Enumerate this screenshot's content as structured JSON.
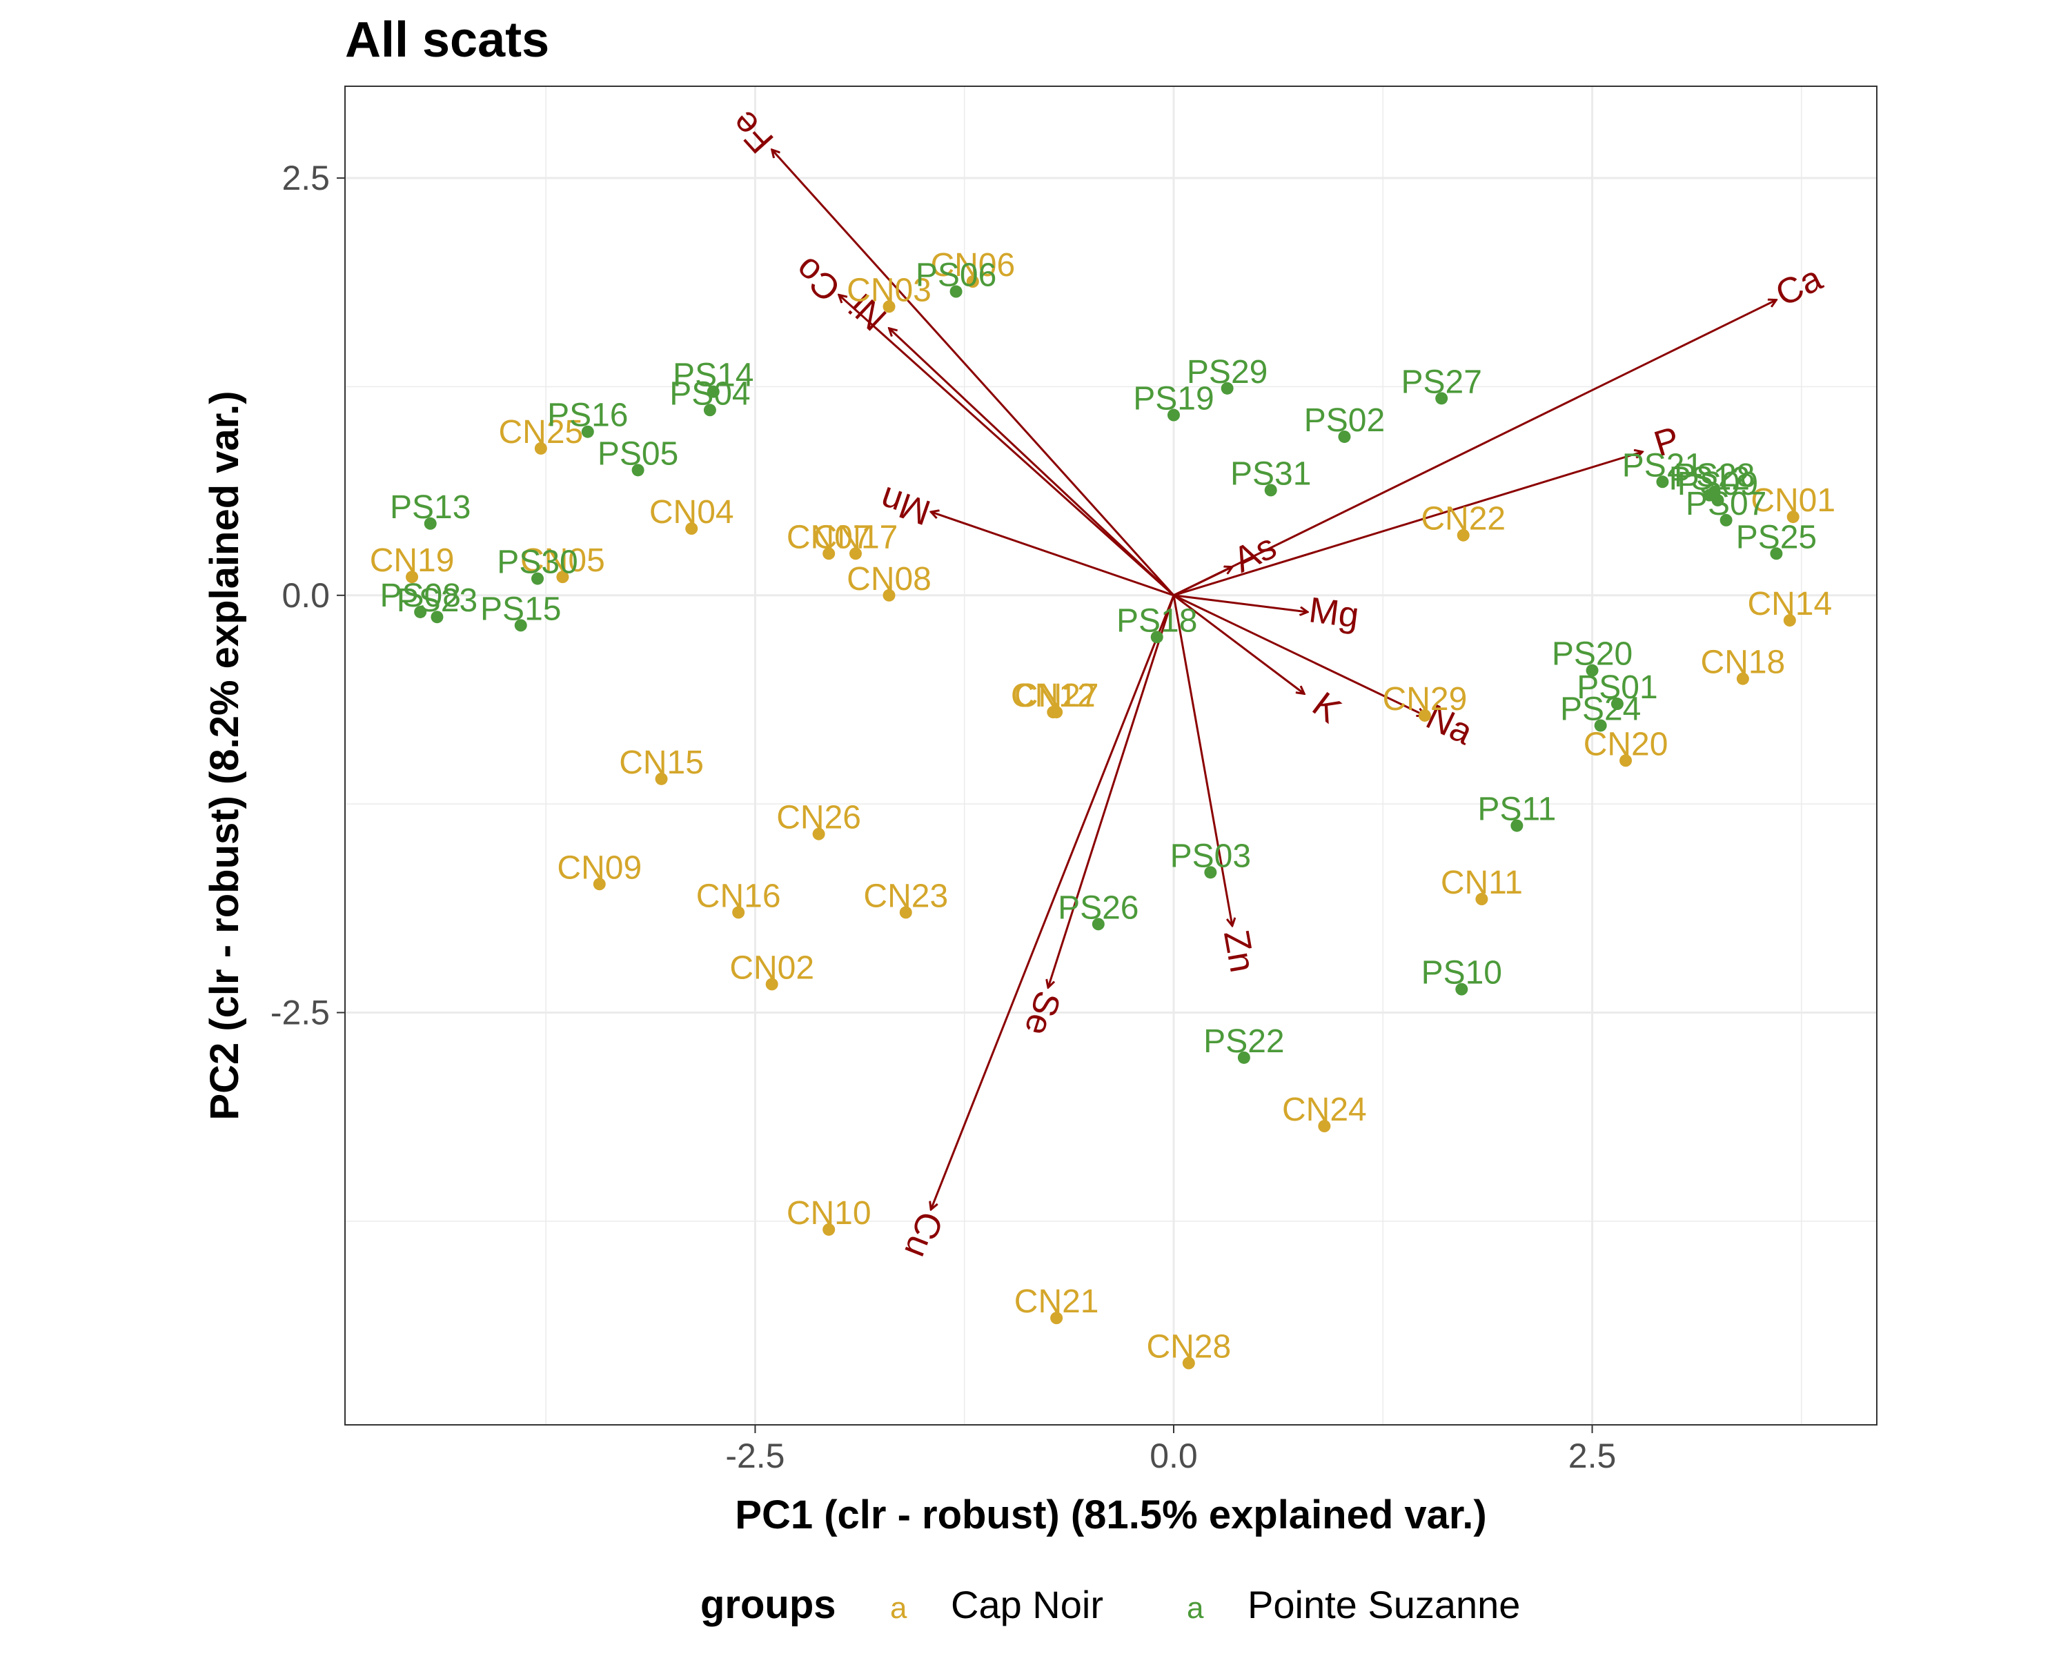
{
  "chart_data": {
    "type": "scatter",
    "title": "All scats",
    "xlabel": "PC1 (clr - robust) (81.5% explained var.)",
    "ylabel": "PC2 (clr - robust) (8.2% explained var.)",
    "xlim": [
      -4.95,
      4.2
    ],
    "ylim": [
      -4.97,
      3.05
    ],
    "x_ticks": [
      -2.5,
      0.0,
      2.5
    ],
    "y_ticks": [
      -2.5,
      0.0,
      2.5
    ],
    "x_tick_labels": [
      "-2.5",
      "0.0",
      "2.5"
    ],
    "y_tick_labels": [
      "-2.5",
      "0.0",
      "2.5"
    ],
    "grid": true,
    "legend": {
      "title": "groups",
      "placement": "bottom",
      "entries": [
        {
          "label": "Cap Noir",
          "color": "#d4a62a"
        },
        {
          "label": "Pointe Suzanne",
          "color": "#4c9a3a"
        }
      ]
    },
    "series": [
      {
        "name": "Cap Noir",
        "color": "#d4a62a",
        "points": [
          {
            "label": "CN01",
            "x": 3.7,
            "y": 0.47
          },
          {
            "label": "CN02",
            "x": -2.4,
            "y": -2.33
          },
          {
            "label": "CN03",
            "x": -1.7,
            "y": 1.73
          },
          {
            "label": "CN04",
            "x": -2.88,
            "y": 0.4
          },
          {
            "label": "CN05",
            "x": -3.65,
            "y": 0.11
          },
          {
            "label": "CN06",
            "x": -1.2,
            "y": 1.88
          },
          {
            "label": "CN07",
            "x": -2.06,
            "y": 0.25
          },
          {
            "label": "CN08",
            "x": -1.7,
            "y": 0.0
          },
          {
            "label": "CN09",
            "x": -3.43,
            "y": -1.73
          },
          {
            "label": "CN10",
            "x": -2.06,
            "y": -3.8
          },
          {
            "label": "CN11",
            "x": 1.84,
            "y": -1.82
          },
          {
            "label": "CN12",
            "x": -0.72,
            "y": -0.7
          },
          {
            "label": "CN14",
            "x": 3.68,
            "y": -0.15
          },
          {
            "label": "CN15",
            "x": -3.06,
            "y": -1.1
          },
          {
            "label": "CN16",
            "x": -2.6,
            "y": -1.9
          },
          {
            "label": "CN17",
            "x": -1.9,
            "y": 0.25
          },
          {
            "label": "CN18",
            "x": 3.4,
            "y": -0.5
          },
          {
            "label": "CN19",
            "x": -4.55,
            "y": 0.11
          },
          {
            "label": "CN20",
            "x": 2.7,
            "y": -0.99
          },
          {
            "label": "CN21",
            "x": -0.7,
            "y": -4.33
          },
          {
            "label": "CN22",
            "x": 1.73,
            "y": 0.36
          },
          {
            "label": "CN23",
            "x": -1.6,
            "y": -1.9
          },
          {
            "label": "CN24",
            "x": 0.9,
            "y": -3.18
          },
          {
            "label": "CN25",
            "x": -3.78,
            "y": 0.88
          },
          {
            "label": "CN26",
            "x": -2.12,
            "y": -1.43
          },
          {
            "label": "CN27",
            "x": -0.7,
            "y": -0.7
          },
          {
            "label": "CN28",
            "x": 0.09,
            "y": -4.6
          },
          {
            "label": "CN29",
            "x": 1.5,
            "y": -0.72
          }
        ]
      },
      {
        "name": "Pointe Suzanne",
        "color": "#4c9a3a",
        "points": [
          {
            "label": "PS01",
            "x": 2.65,
            "y": -0.65
          },
          {
            "label": "PS02",
            "x": 1.02,
            "y": 0.95
          },
          {
            "label": "PS03",
            "x": 0.22,
            "y": -1.66
          },
          {
            "label": "PS04",
            "x": -2.77,
            "y": 1.11
          },
          {
            "label": "PS05",
            "x": -3.2,
            "y": 0.75
          },
          {
            "label": "PS06",
            "x": -1.3,
            "y": 1.82
          },
          {
            "label": "PS07",
            "x": 3.3,
            "y": 0.45
          },
          {
            "label": "PS08",
            "x": -4.5,
            "y": -0.1
          },
          {
            "label": "PS09",
            "x": 3.25,
            "y": 0.57
          },
          {
            "label": "PS11",
            "x": 2.05,
            "y": -1.38
          },
          {
            "label": "PS10",
            "x": 1.72,
            "y": -2.36
          },
          {
            "label": "PS12",
            "x": 3.2,
            "y": 0.6
          },
          {
            "label": "PS13",
            "x": -4.44,
            "y": 0.43
          },
          {
            "label": "PS14",
            "x": -2.75,
            "y": 1.22
          },
          {
            "label": "PS15",
            "x": -3.9,
            "y": -0.18
          },
          {
            "label": "PS16",
            "x": -3.5,
            "y": 0.98
          },
          {
            "label": "PS18",
            "x": -0.1,
            "y": -0.25
          },
          {
            "label": "PS19",
            "x": 0.0,
            "y": 1.08
          },
          {
            "label": "PS20",
            "x": 2.5,
            "y": -0.45
          },
          {
            "label": "PS21",
            "x": 2.92,
            "y": 0.68
          },
          {
            "label": "PS22",
            "x": 0.42,
            "y": -2.77
          },
          {
            "label": "PS23",
            "x": -4.4,
            "y": -0.13
          },
          {
            "label": "PS24",
            "x": 2.55,
            "y": -0.78
          },
          {
            "label": "PS25",
            "x": 3.6,
            "y": 0.25
          },
          {
            "label": "PS26",
            "x": -0.45,
            "y": -1.97
          },
          {
            "label": "PS27",
            "x": 1.6,
            "y": 1.18
          },
          {
            "label": "PS28",
            "x": 3.23,
            "y": 0.62
          },
          {
            "label": "PS29",
            "x": 0.32,
            "y": 1.24
          },
          {
            "label": "PS30",
            "x": -3.8,
            "y": 0.1
          },
          {
            "label": "PS31",
            "x": 0.58,
            "y": 0.63
          }
        ]
      }
    ],
    "arrows": [
      {
        "label": "Fe",
        "x": -2.4,
        "y": 2.67
      },
      {
        "label": "Co",
        "x": -2.0,
        "y": 1.8
      },
      {
        "label": "Ni",
        "x": -1.7,
        "y": 1.6
      },
      {
        "label": "Mn",
        "x": -1.45,
        "y": 0.5
      },
      {
        "label": "Ca",
        "x": 3.6,
        "y": 1.77
      },
      {
        "label": "P",
        "x": 2.8,
        "y": 0.86
      },
      {
        "label": "As",
        "x": 0.35,
        "y": 0.17
      },
      {
        "label": "Mg",
        "x": 0.8,
        "y": -0.1
      },
      {
        "label": "K",
        "x": 0.78,
        "y": -0.59
      },
      {
        "label": "Na",
        "x": 1.5,
        "y": -0.72
      },
      {
        "label": "Zn",
        "x": 0.35,
        "y": -1.98
      },
      {
        "label": "Se",
        "x": -0.75,
        "y": -2.35
      },
      {
        "label": "Cu",
        "x": -1.45,
        "y": -3.68
      }
    ]
  }
}
